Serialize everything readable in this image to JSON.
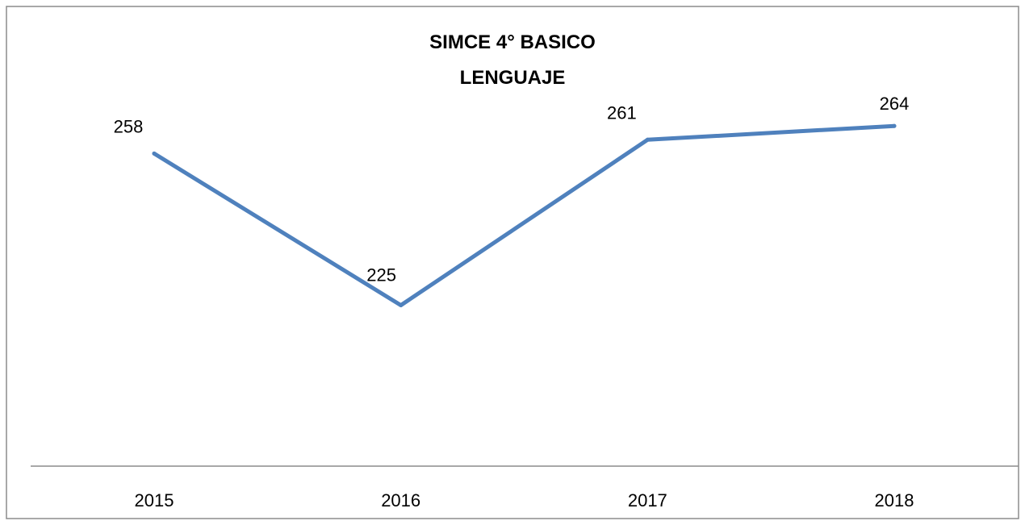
{
  "chart_data": {
    "type": "line",
    "title": "SIMCE 4° BASICO",
    "subtitle": "LENGUAJE",
    "categories": [
      "2015",
      "2016",
      "2017",
      "2018"
    ],
    "values": [
      258,
      225,
      261,
      264
    ],
    "data_labels": [
      "258",
      "225",
      "261",
      "264"
    ],
    "xlabel": "",
    "ylabel": "",
    "ylim": [
      190,
      290
    ],
    "grid": false,
    "legend": "none",
    "series_color": "#4f81bd"
  }
}
